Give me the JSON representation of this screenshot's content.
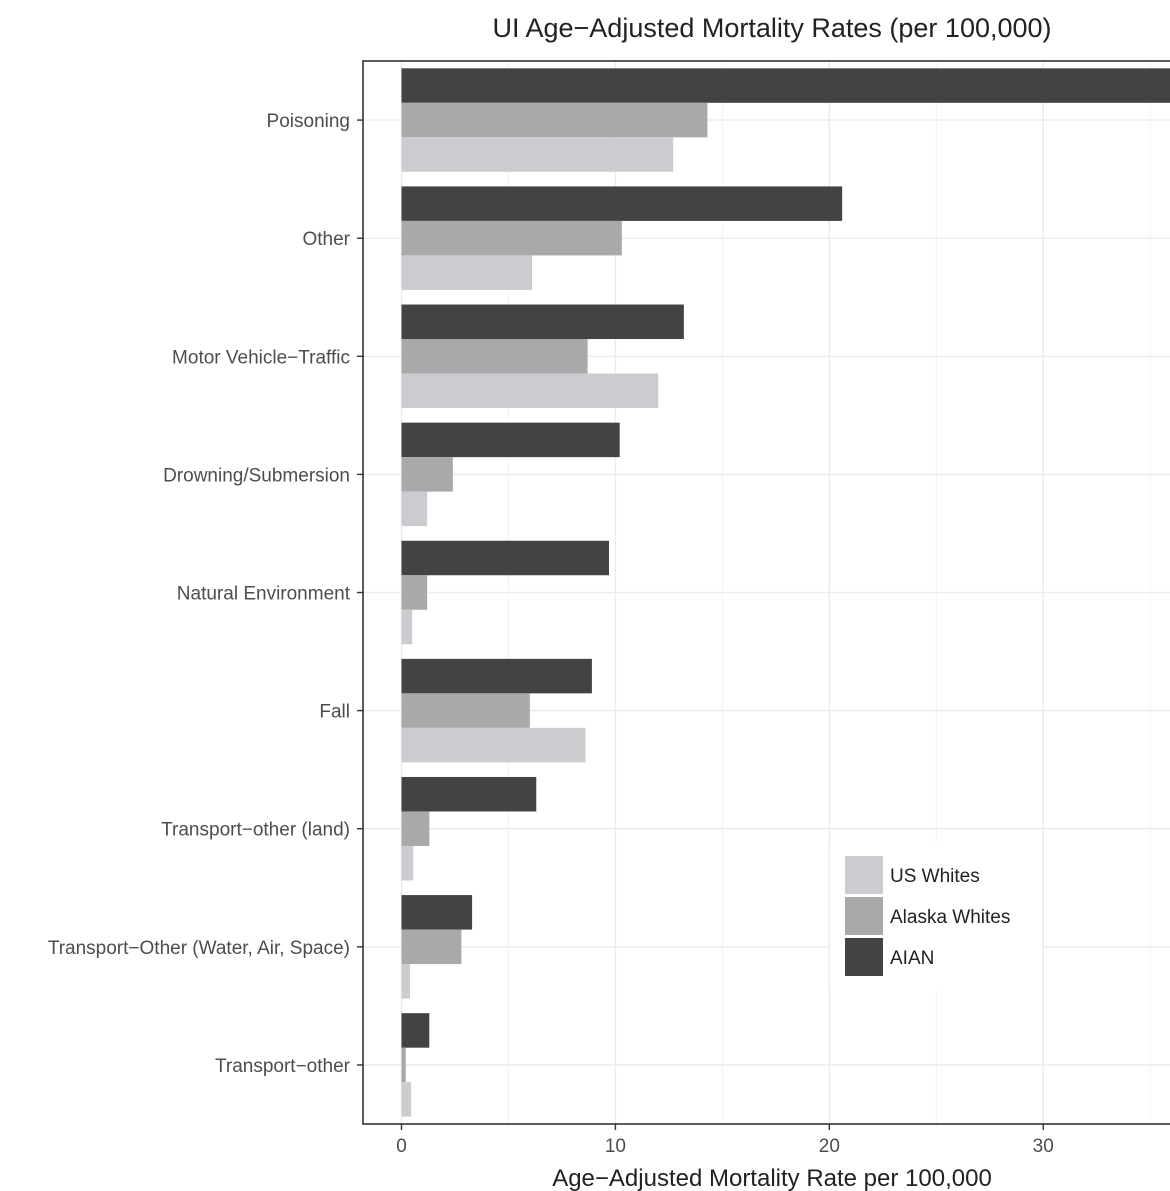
{
  "chart_data": {
    "type": "bar",
    "orientation": "horizontal",
    "title": "UI Age−Adjusted Mortality Rates (per 100,000)",
    "xlabel": "Age−Adjusted Mortality Rate per 100,000",
    "ylabel": "",
    "xlim": [
      -1.8,
      37
    ],
    "x_ticks": [
      0,
      10,
      20,
      30
    ],
    "x_tick_labels": [
      "0",
      "10",
      "20",
      "30"
    ],
    "grid": true,
    "legend_position": "bottom-right",
    "categories": [
      "Poisoning",
      "Other",
      "Motor Vehicle−Traffic",
      "Drowning/Submersion",
      "Natural Environment",
      "Fall",
      "Transport−other (land)",
      "Transport−Other (Water, Air, Space)",
      "Transport−other"
    ],
    "series": [
      {
        "name": "US Whites",
        "color": "#ccccd0",
        "values": [
          12.7,
          6.1,
          12.0,
          1.2,
          0.5,
          8.6,
          0.55,
          0.4,
          0.45
        ]
      },
      {
        "name": "Alaska Whites",
        "color": "#a9a9ab",
        "values": [
          14.3,
          10.3,
          8.7,
          2.4,
          1.2,
          6.0,
          1.3,
          2.8,
          0.2
        ]
      },
      {
        "name": "AIAN",
        "color": "#434343",
        "values": [
          36.1,
          20.6,
          13.2,
          10.2,
          9.7,
          8.9,
          6.3,
          3.3,
          1.3
        ]
      }
    ]
  }
}
